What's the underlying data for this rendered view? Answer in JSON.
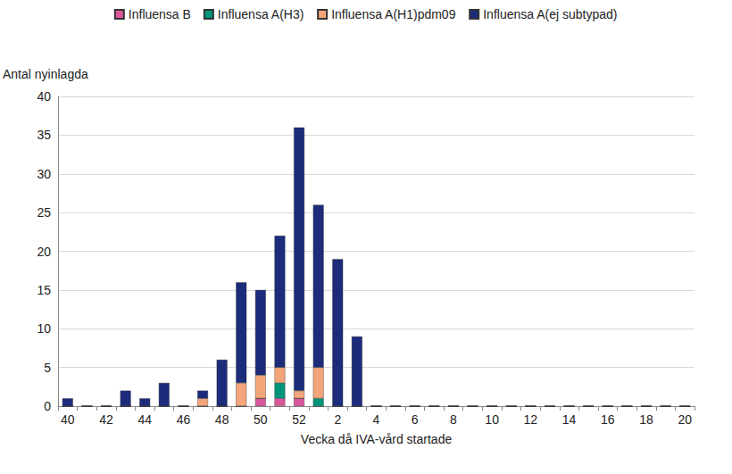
{
  "chart_data": {
    "type": "bar",
    "stacked": true,
    "y_label": "Antal nyinlagda",
    "x_label": "Vecka då IVA-vård startade",
    "categories": [
      "40",
      null,
      "42",
      null,
      "44",
      null,
      "46",
      null,
      "48",
      null,
      "50",
      null,
      "52",
      null,
      "2",
      null,
      "4",
      null,
      "6",
      null,
      "8",
      null,
      "10",
      null,
      "12",
      null,
      "14",
      null,
      "16",
      null,
      "18",
      null,
      "20"
    ],
    "series": [
      {
        "name": "Influensa B",
        "color": "#d9579a",
        "values": [
          0,
          0,
          0,
          0,
          0,
          0,
          0,
          0,
          0,
          0,
          1,
          1,
          1,
          0,
          0,
          0,
          0,
          0,
          0,
          0,
          0,
          0,
          0,
          0,
          0,
          0,
          0,
          0,
          0,
          0,
          0,
          0,
          0
        ]
      },
      {
        "name": "Influensa A(H3)",
        "color": "#00957a",
        "values": [
          0,
          0,
          0,
          0,
          0,
          0,
          0,
          0,
          0,
          0,
          0,
          2,
          0,
          1,
          0,
          0,
          0,
          0,
          0,
          0,
          0,
          0,
          0,
          0,
          0,
          0,
          0,
          0,
          0,
          0,
          0,
          0,
          0
        ]
      },
      {
        "name": "Influensa A(H1)pdm09",
        "color": "#f4a67a",
        "values": [
          0,
          0,
          0,
          0,
          0,
          0,
          0,
          1,
          0,
          3,
          3,
          2,
          1,
          4,
          0,
          0,
          0,
          0,
          0,
          0,
          0,
          0,
          0,
          0,
          0,
          0,
          0,
          0,
          0,
          0,
          0,
          0,
          0
        ]
      },
      {
        "name": "Influensa A(ej subtypad)",
        "color": "#1c2b7a",
        "values": [
          1,
          0,
          0,
          2,
          1,
          3,
          0,
          1,
          6,
          13,
          11,
          17,
          34,
          21,
          19,
          9,
          0,
          0,
          0,
          0,
          0,
          0,
          0,
          0,
          0,
          0,
          0,
          0,
          0,
          0,
          0,
          0,
          0
        ]
      }
    ],
    "ylim": [
      0,
      40
    ],
    "yticks": [
      0,
      5,
      10,
      15,
      20,
      25,
      30,
      35,
      40
    ],
    "grid": true,
    "legend": "top"
  }
}
